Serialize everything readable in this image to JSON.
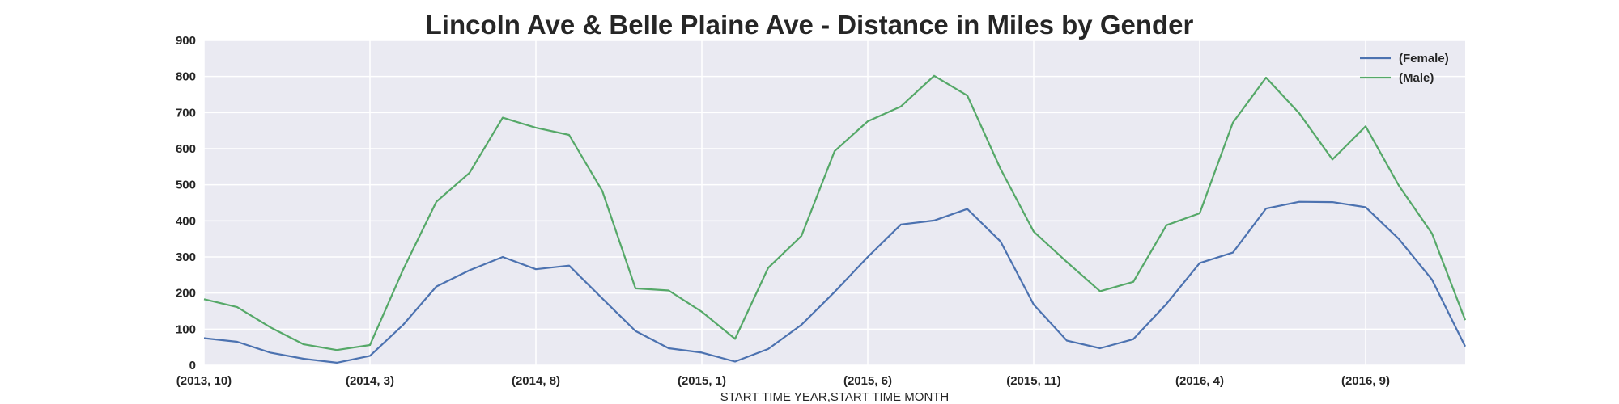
{
  "chart_data": {
    "type": "line",
    "title": "Lincoln Ave & Belle Plaine Ave - Distance in Miles by Gender",
    "xlabel": "START TIME YEAR,START TIME MONTH",
    "ylabel": "",
    "ylim": [
      0,
      900
    ],
    "yticks": [
      0,
      100,
      200,
      300,
      400,
      500,
      600,
      700,
      800,
      900
    ],
    "grid": true,
    "legend_position": "top-right",
    "x": [
      "(2013, 10)",
      "(2013, 11)",
      "(2013, 12)",
      "(2014, 1)",
      "(2014, 2)",
      "(2014, 3)",
      "(2014, 4)",
      "(2014, 5)",
      "(2014, 6)",
      "(2014, 7)",
      "(2014, 8)",
      "(2014, 9)",
      "(2014, 10)",
      "(2014, 11)",
      "(2014, 12)",
      "(2015, 1)",
      "(2015, 2)",
      "(2015, 3)",
      "(2015, 4)",
      "(2015, 5)",
      "(2015, 6)",
      "(2015, 7)",
      "(2015, 8)",
      "(2015, 9)",
      "(2015, 10)",
      "(2015, 11)",
      "(2015, 12)",
      "(2016, 1)",
      "(2016, 2)",
      "(2016, 3)",
      "(2016, 4)",
      "(2016, 5)",
      "(2016, 6)",
      "(2016, 7)",
      "(2016, 8)",
      "(2016, 9)",
      "(2016, 10)",
      "(2016, 11)",
      "(2016, 12)"
    ],
    "xticks": [
      "(2013, 10)",
      "(2014, 3)",
      "(2014, 8)",
      "(2015, 1)",
      "(2015, 6)",
      "(2015, 11)",
      "(2016, 4)",
      "(2016, 9)"
    ],
    "series": [
      {
        "name": "(Female)",
        "color": "#4c72b0",
        "values": [
          75,
          65,
          35,
          18,
          7,
          26,
          112,
          218,
          263,
          300,
          266,
          276,
          185,
          95,
          47,
          35,
          10,
          45,
          112,
          203,
          300,
          390,
          401,
          433,
          343,
          168,
          68,
          47,
          72,
          170,
          283,
          312,
          434,
          453,
          452,
          438,
          350,
          237,
          52
        ]
      },
      {
        "name": "(Male)",
        "color": "#55a868",
        "values": [
          183,
          161,
          105,
          58,
          42,
          56,
          265,
          453,
          533,
          686,
          658,
          638,
          483,
          213,
          207,
          148,
          73,
          270,
          358,
          593,
          676,
          717,
          802,
          747,
          544,
          370,
          286,
          205,
          231,
          388,
          421,
          672,
          797,
          698,
          570,
          662,
          498,
          365,
          125
        ]
      }
    ]
  }
}
